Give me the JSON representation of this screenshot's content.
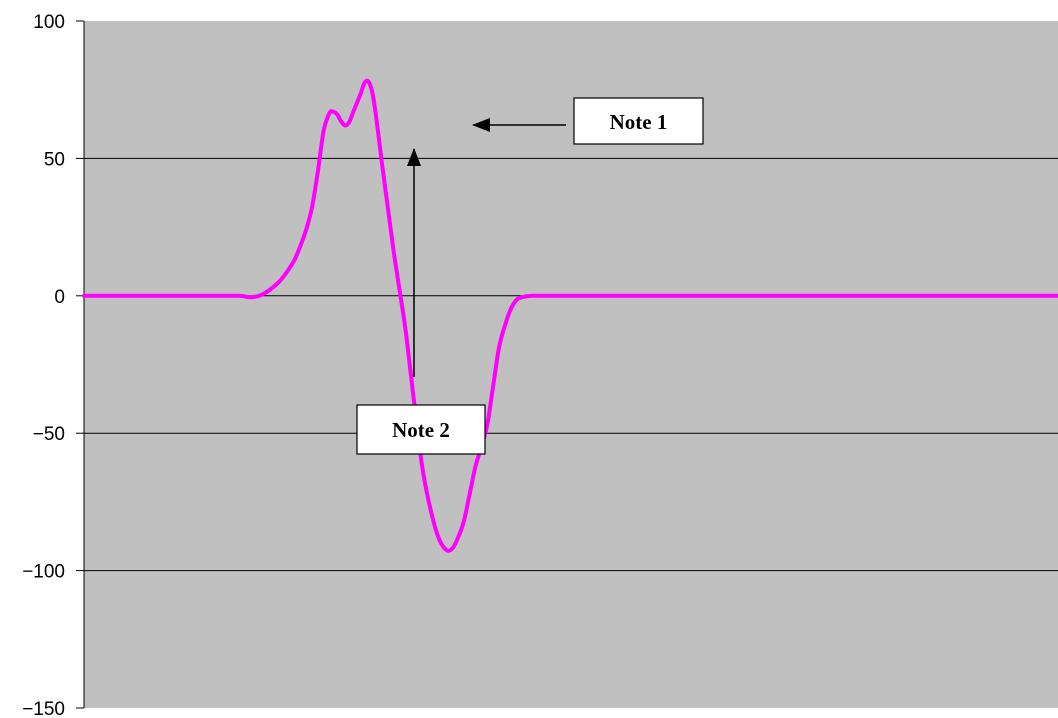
{
  "chart_data": {
    "type": "line",
    "title": "",
    "xlabel": "",
    "ylabel": "",
    "ylim": [
      -150,
      100
    ],
    "yticks": [
      100,
      50,
      0,
      -50,
      -100,
      -150
    ],
    "ytick_labels": [
      "100",
      "50",
      "0",
      "−50",
      "−100",
      "−150"
    ],
    "x_axis_labels_shown": false,
    "grid": "horizontal",
    "legend": "none",
    "colors": {
      "plot_background": "#c0c0c0",
      "line": "#ff00ff",
      "grid": "#000000"
    },
    "series": [
      {
        "x": [
          0,
          20,
          40,
          60,
          80,
          100,
          120,
          140,
          160,
          170,
          180,
          190,
          200,
          208,
          216,
          222,
          228,
          234,
          240,
          246,
          252,
          256,
          260,
          264,
          268,
          272,
          276,
          280,
          284,
          288,
          292,
          296,
          300,
          306,
          312,
          318,
          324,
          330,
          336,
          342,
          348,
          356,
          364,
          372,
          378,
          384,
          390,
          396,
          402,
          408,
          414,
          420,
          426,
          432,
          438,
          444,
          450,
          460,
          470,
          480,
          500,
          550,
          600,
          650,
          700,
          750,
          800,
          850,
          900,
          950,
          1000
        ],
        "y": [
          0,
          0,
          0,
          0,
          0,
          0,
          0,
          0,
          0,
          -0.5,
          0,
          2,
          5,
          8.5,
          13,
          18,
          24,
          32,
          45,
          60,
          66.5,
          67,
          66,
          63.5,
          62,
          63,
          66.5,
          70,
          73.5,
          77.5,
          78,
          74,
          65,
          48,
          32,
          16,
          2,
          -12,
          -30,
          -48,
          -64,
          -78,
          -88,
          -92.5,
          -92,
          -88,
          -82,
          -72,
          -62,
          -55,
          -47,
          -33,
          -19,
          -11,
          -5,
          -1.5,
          -0.5,
          0,
          0,
          0,
          0,
          0,
          0,
          0,
          0,
          0,
          0,
          0,
          0,
          0,
          0
        ]
      }
    ],
    "annotations": [
      {
        "id": "note1",
        "text": "Note 1"
      },
      {
        "id": "note2",
        "text": "Note 2"
      }
    ]
  }
}
